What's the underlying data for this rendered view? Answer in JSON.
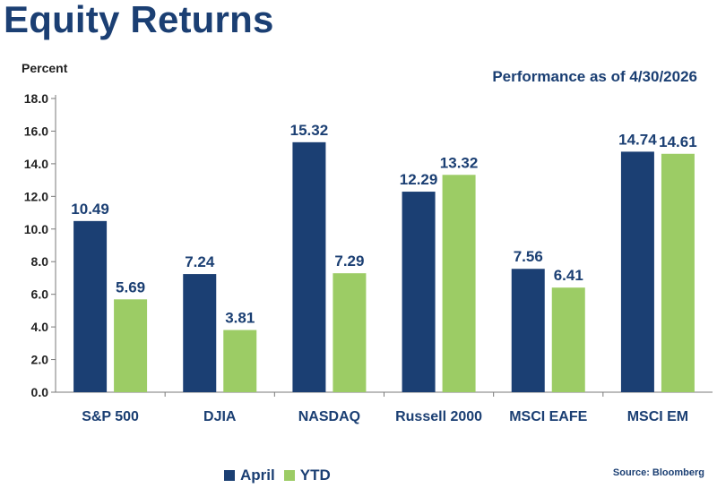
{
  "header": {
    "title": "Equity Returns",
    "subtitle": "Performance as of 4/30/2026",
    "source": "Source: Bloomberg"
  },
  "colors": {
    "april": "#1b3f73",
    "ytd": "#9ccc65",
    "text": "#1b3f73"
  },
  "chart_data": {
    "type": "bar",
    "title": "Equity Returns",
    "subtitle": "Performance as of 4/30/2026",
    "ylabel": "Percent",
    "xlabel": "",
    "ylim": [
      0,
      18
    ],
    "yticks": [
      "0.0",
      "2.0",
      "4.0",
      "6.0",
      "8.0",
      "10.0",
      "12.0",
      "14.0",
      "16.0",
      "18.0"
    ],
    "categories": [
      "S&P 500",
      "DJIA",
      "NASDAQ",
      "Russell 2000",
      "MSCI EAFE",
      "MSCI EM"
    ],
    "series": [
      {
        "name": "April",
        "values": [
          10.49,
          7.24,
          15.32,
          12.29,
          7.56,
          14.74
        ]
      },
      {
        "name": "YTD",
        "values": [
          5.69,
          3.81,
          7.29,
          13.32,
          6.41,
          14.61
        ]
      }
    ],
    "legend": "bottom",
    "grid": false
  }
}
